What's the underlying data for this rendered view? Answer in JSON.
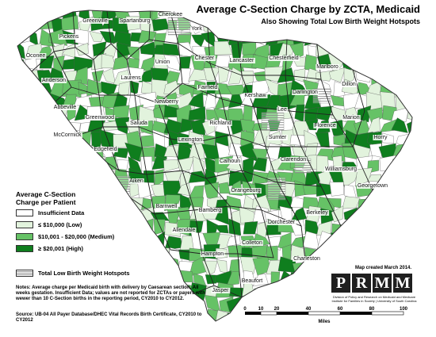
{
  "header": {
    "title": "Average C-Section Charge by ZCTA, Medicaid",
    "subtitle": "Also Showing Total Low Birth Weight Hotspots"
  },
  "colors": {
    "no_data": "#ffffff",
    "low": "#e2f3dd",
    "medium": "#66c266",
    "high": "#0f7e1e",
    "border": "#555555"
  },
  "legend": {
    "title_line1": "Average C-Section",
    "title_line2": "Charge per Patient",
    "items": [
      {
        "label": "Insufficient Data",
        "color": "#ffffff"
      },
      {
        "label": "≤ $10,000 (Low)",
        "color": "#e2f3dd"
      },
      {
        "label": "$10,001 - $20,000 (Medium)",
        "color": "#66c266"
      },
      {
        "label": "≥ $20,001 (High)",
        "color": "#0f7e1e"
      }
    ],
    "hotspot_label": "Total Low Birth Weight Hotspots"
  },
  "counties": [
    "Oconee",
    "Pickens",
    "Greenville",
    "Spartanburg",
    "Cherokee",
    "York",
    "Union",
    "Chester",
    "Lancaster",
    "Chesterfield",
    "Marlboro",
    "Dillon",
    "Anderson",
    "Laurens",
    "Abbeville",
    "Newberry",
    "Fairfield",
    "Kershaw",
    "Darlington",
    "Greenwood",
    "Lee",
    "Marion",
    "Florence",
    "Horry",
    "McCormick",
    "Saluda",
    "Richland",
    "Sumter",
    "Edgefield",
    "Lexington",
    "Calhoun",
    "Clarendon",
    "Williamsburg",
    "Georgetown",
    "Aiken",
    "Orangeburg",
    "Barnwell",
    "Bamberg",
    "Berkeley",
    "Dorchester",
    "Allendale",
    "Colleton",
    "Charleston",
    "Hampton",
    "Jasper",
    "Beaufort"
  ],
  "notes": "Notes: Average charge per Medicaid birth with delivery by Caesarean section. All weeks gestation. Insufficient Data; values are not reported for ZCTAs or payers with wewer than 10 C-Section births in the reporting period, CY2010 to CY2012.",
  "source": "Source: UB-04 All Payer Database/DHEC Vital Records Birth Certificate, CY2010 to CY2012",
  "map_created": "Map created March 2014.",
  "logo": {
    "letters": [
      "P",
      "R",
      "M",
      "M"
    ],
    "caption": "Division of Policy and Research on Medicaid and Medicare Institute for Families in Society | University of South Carolina"
  },
  "scale": {
    "ticks": [
      "0",
      "10",
      "20",
      "40",
      "60",
      "80",
      "100"
    ],
    "unit": "Miles"
  }
}
